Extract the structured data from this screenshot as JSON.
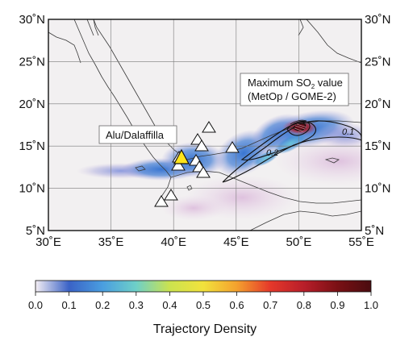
{
  "map": {
    "x_ticks": [
      "30˚E",
      "35˚E",
      "40˚E",
      "45˚E",
      "50˚E",
      "55˚E"
    ],
    "y_ticks": [
      "30˚N",
      "25˚N",
      "20˚N",
      "15˚N",
      "10˚N",
      "5˚N"
    ],
    "lon_range": [
      30,
      55
    ],
    "lat_range": [
      5,
      30
    ],
    "volcano_label": "Alu/Dalaffilla",
    "so2_label_line1_pre": "Maximum SO",
    "so2_label_line1_sub": "2",
    "so2_label_line1_post": " value",
    "so2_label_line2": "(MetOp / GOME-2)",
    "contour_labels": [
      "0.1",
      "0.2"
    ],
    "land_color": "#f2f0f1",
    "highlight_color": "#ffe41a"
  },
  "colorbar": {
    "title": "Trajectory Density",
    "ticks": [
      "0.0",
      "0.1",
      "0.2",
      "0.3",
      "0.4",
      "0.5",
      "0.6",
      "0.7",
      "0.8",
      "0.9",
      "1.0"
    ],
    "range": [
      0,
      1
    ],
    "colors": [
      "#f4eef4",
      "#3a62c6",
      "#4a9ee0",
      "#6ed0c8",
      "#cbe34f",
      "#f2e23c",
      "#f4a12e",
      "#e5382a",
      "#b81e2a",
      "#7a1014",
      "#4a0c10"
    ]
  }
}
